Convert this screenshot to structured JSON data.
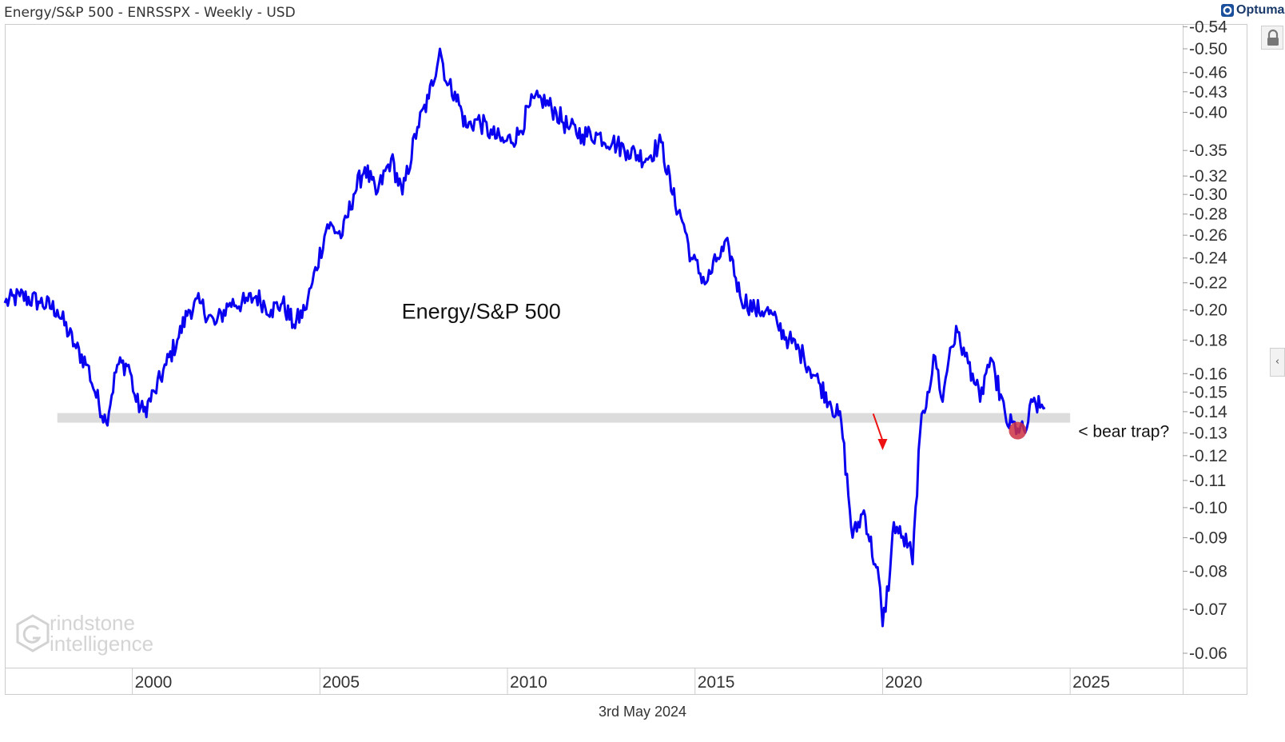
{
  "header": {
    "title": "Energy/S&P 500 - ENRSSPX - Weekly - USD",
    "brand": "Optuma"
  },
  "footer": {
    "date": "3rd May 2024"
  },
  "watermark": {
    "line1": "rindstone",
    "line2": "intelligence"
  },
  "controls": {
    "collapse_glyph": "‹"
  },
  "colors": {
    "series": "#0a00f0",
    "support_band": "#dcdcdc",
    "arrow": "#ee1111",
    "marker": "#cc3344",
    "axis": "#cccccc"
  },
  "chart_data": {
    "type": "line",
    "title": "Energy/S&P 500",
    "scale": "log",
    "y_ticks": [
      0.54,
      0.5,
      0.46,
      0.43,
      0.4,
      0.35,
      0.32,
      0.3,
      0.28,
      0.26,
      0.24,
      0.22,
      0.2,
      0.18,
      0.16,
      0.15,
      0.14,
      0.13,
      0.12,
      0.11,
      0.1,
      0.09,
      0.08,
      0.07,
      0.06
    ],
    "x_ticks": [
      2000,
      2005,
      2010,
      2015,
      2020,
      2025
    ],
    "xlim": [
      1996.6,
      2028.0
    ],
    "ylim": [
      0.058,
      0.55
    ],
    "support_level": 0.137,
    "support_range": [
      1998.0,
      2025.0
    ],
    "series": [
      {
        "name": "Energy/S&P 500",
        "x": [
          1996.6,
          1997.0,
          1997.5,
          1998.0,
          1998.5,
          1998.8,
          1999.0,
          1999.3,
          1999.6,
          1999.9,
          2000.1,
          2000.3,
          2000.6,
          2000.9,
          2001.2,
          2001.5,
          2001.8,
          2002.2,
          2002.6,
          2003.0,
          2003.3,
          2003.7,
          2004.0,
          2004.3,
          2004.6,
          2004.8,
          2005.2,
          2005.6,
          2005.9,
          2006.2,
          2006.5,
          2006.9,
          2007.2,
          2007.6,
          2007.9,
          2008.2,
          2008.4,
          2008.6,
          2008.9,
          2009.2,
          2009.6,
          2009.9,
          2010.3,
          2010.6,
          2010.9,
          2011.3,
          2011.6,
          2012.0,
          2012.4,
          2012.8,
          2013.2,
          2013.7,
          2014.1,
          2014.4,
          2014.7,
          2014.9,
          2015.3,
          2015.6,
          2015.9,
          2016.2,
          2016.6,
          2016.9,
          2017.2,
          2017.5,
          2017.9,
          2018.3,
          2018.6,
          2018.9,
          2019.2,
          2019.5,
          2019.8,
          2019.9,
          2020.0,
          2020.2,
          2020.3,
          2020.5,
          2020.7,
          2020.8,
          2021.0,
          2021.2,
          2021.4,
          2021.6,
          2021.8,
          2022.0,
          2022.2,
          2022.4,
          2022.6,
          2022.8,
          2023.0,
          2023.3,
          2023.6,
          2023.8,
          2024.0,
          2024.2,
          2024.33
        ],
        "values": [
          0.205,
          0.21,
          0.206,
          0.2,
          0.175,
          0.165,
          0.15,
          0.135,
          0.165,
          0.165,
          0.145,
          0.14,
          0.15,
          0.165,
          0.18,
          0.2,
          0.205,
          0.19,
          0.205,
          0.205,
          0.21,
          0.2,
          0.205,
          0.19,
          0.2,
          0.22,
          0.27,
          0.26,
          0.3,
          0.33,
          0.3,
          0.34,
          0.3,
          0.38,
          0.42,
          0.5,
          0.44,
          0.43,
          0.38,
          0.39,
          0.37,
          0.36,
          0.37,
          0.41,
          0.42,
          0.4,
          0.38,
          0.37,
          0.37,
          0.36,
          0.35,
          0.34,
          0.36,
          0.3,
          0.27,
          0.24,
          0.22,
          0.24,
          0.25,
          0.21,
          0.2,
          0.2,
          0.19,
          0.18,
          0.17,
          0.155,
          0.145,
          0.135,
          0.09,
          0.099,
          0.082,
          0.078,
          0.066,
          0.08,
          0.095,
          0.09,
          0.088,
          0.082,
          0.13,
          0.15,
          0.17,
          0.145,
          0.175,
          0.185,
          0.17,
          0.16,
          0.145,
          0.165,
          0.16,
          0.135,
          0.132,
          0.13,
          0.145,
          0.142,
          0.142
        ]
      }
    ],
    "annotations": [
      {
        "text": "Energy/S&P 500",
        "x": 2009.3,
        "y": 0.199
      },
      {
        "text": "< bear trap?",
        "x": 2025.6,
        "y": 0.131
      }
    ],
    "arrow": {
      "from": [
        2019.75,
        0.139
      ],
      "to": [
        2020.0,
        0.123
      ]
    },
    "marker": {
      "x": 2023.6,
      "y": 0.131
    }
  }
}
